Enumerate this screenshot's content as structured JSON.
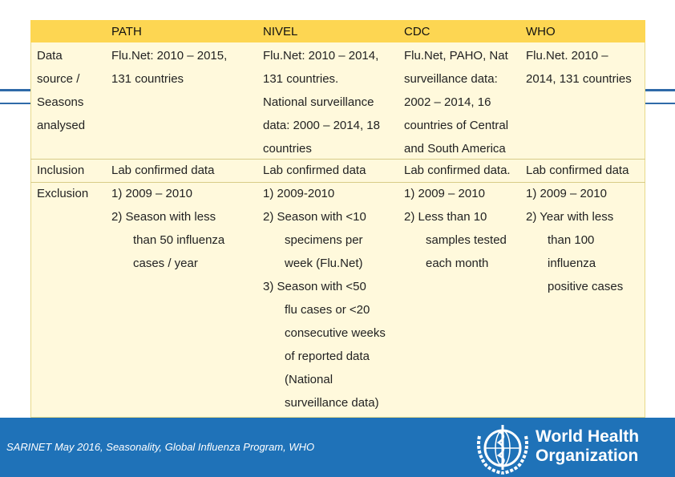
{
  "table": {
    "headers": [
      "PATH",
      "NIVEL",
      "CDC",
      "WHO"
    ],
    "rows": {
      "data_source": {
        "label": [
          "Data",
          "source /",
          "Seasons",
          "analysed"
        ],
        "path": [
          "Flu.Net: 2010 – 2015,",
          "131 countries"
        ],
        "nivel": [
          "Flu.Net: 2010 – 2014,",
          "131 countries.",
          "National surveillance",
          "data: 2000 – 2014, 18",
          "countries"
        ],
        "cdc": [
          "Flu.Net, PAHO, Nat",
          "surveillance data:",
          "2002 – 2014, 16",
          "countries of Central",
          "and South America"
        ],
        "who": [
          "Flu.Net. 2010 –",
          "2014, 131 countries"
        ]
      },
      "inclusion": {
        "label": "Inclusion",
        "path": "Lab confirmed data",
        "nivel": "Lab confirmed data",
        "cdc": "Lab confirmed data.",
        "who": "Lab confirmed data"
      },
      "exclusion": {
        "label": "Exclusion",
        "path": [
          "1)  2009 – 2010",
          "2)  Season with less",
          "than 50 influenza",
          "cases / year"
        ],
        "nivel": [
          "1)  2009-2010",
          "2)  Season with <10",
          "specimens per",
          "week (Flu.Net)",
          "3)  Season with <50",
          "flu cases or <20",
          "consecutive weeks",
          "of reported data",
          "(National",
          "surveillance data)"
        ],
        "cdc": [
          "1)  2009 – 2010",
          "2)  Less than 10",
          "samples tested",
          "each month"
        ],
        "who": [
          "1)  2009 – 2010",
          "2)  Year with less",
          "than 100",
          "influenza",
          "positive cases"
        ]
      }
    }
  },
  "footer": {
    "caption": "SARINET May 2016, Seasonality, Global Influenza Program, WHO",
    "logo_line1": "World Health",
    "logo_line2": "Organization"
  }
}
